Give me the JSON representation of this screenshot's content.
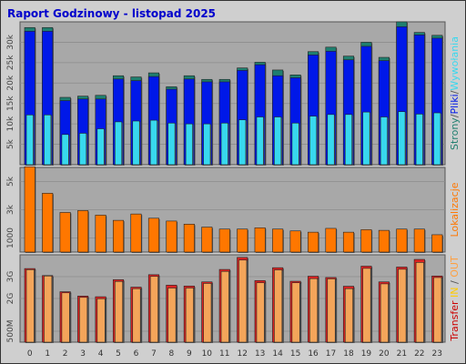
{
  "title": "Raport Godzinowy -  listopad 2025",
  "colors": {
    "background": "#cfcfcf",
    "plot_bg": "#a8a8a8",
    "title": "#0000cc",
    "strony": "#1f7f6f",
    "pliki": "#0018e8",
    "wywolania": "#38d8ee",
    "lokalizacje": "#ff7700",
    "transfer_in": "#dd2222",
    "transfer_out": "#f4a55a"
  },
  "chart_data": [
    {
      "type": "bar",
      "name": "hits",
      "categories": [
        "0",
        "1",
        "2",
        "3",
        "4",
        "5",
        "6",
        "7",
        "8",
        "9",
        "10",
        "11",
        "12",
        "13",
        "14",
        "15",
        "16",
        "17",
        "18",
        "19",
        "20",
        "21",
        "22",
        "23"
      ],
      "ylim": [
        0,
        35000
      ],
      "yticks": [
        {
          "value": 5000,
          "label": "5k"
        },
        {
          "value": 10000,
          "label": "10k"
        },
        {
          "value": 15000,
          "label": "15k"
        },
        {
          "value": 20000,
          "label": "20k"
        },
        {
          "value": 25000,
          "label": "25k"
        },
        {
          "value": 30000,
          "label": "30k"
        }
      ],
      "ylabel_parts": [
        {
          "text": "Strony",
          "color": "#1f7f6f"
        },
        {
          "text": "/",
          "color": "#555555"
        },
        {
          "text": "Pliki",
          "color": "#0018e8"
        },
        {
          "text": "/",
          "color": "#555555"
        },
        {
          "text": "Wywołania",
          "color": "#38d8ee"
        }
      ],
      "series": [
        {
          "name": "Strony",
          "color": "#1f7f6f",
          "values": [
            33600,
            33600,
            16500,
            16800,
            17000,
            21800,
            21500,
            22500,
            19100,
            21800,
            20900,
            20900,
            23700,
            25100,
            23200,
            22000,
            27700,
            28800,
            26600,
            30000,
            26300,
            35000,
            32400,
            31700
          ]
        },
        {
          "name": "Pliki",
          "color": "#0018e8",
          "values": [
            32700,
            32700,
            15700,
            16100,
            16100,
            21000,
            20600,
            21600,
            18500,
            21000,
            20300,
            20300,
            23100,
            24500,
            21800,
            21300,
            26900,
            27800,
            25700,
            29000,
            25500,
            33800,
            31800,
            31000
          ]
        },
        {
          "name": "Wywołania",
          "color": "#38d8ee",
          "values": [
            12200,
            12200,
            7400,
            7700,
            8800,
            10500,
            10700,
            10900,
            10200,
            10000,
            10000,
            10200,
            11000,
            11700,
            11700,
            10200,
            11900,
            12300,
            12300,
            12900,
            11700,
            13000,
            12400,
            12700
          ]
        }
      ]
    },
    {
      "type": "bar",
      "name": "lokalizacje",
      "categories": [
        "0",
        "1",
        "2",
        "3",
        "4",
        "5",
        "6",
        "7",
        "8",
        "9",
        "10",
        "11",
        "12",
        "13",
        "14",
        "15",
        "16",
        "17",
        "18",
        "19",
        "20",
        "21",
        "22",
        "23"
      ],
      "ylim": [
        0,
        6000
      ],
      "yticks": [
        {
          "value": 1000,
          "label": "1000"
        },
        {
          "value": 3000,
          "label": "3k"
        },
        {
          "value": 5000,
          "label": "5k"
        }
      ],
      "ylabel_parts": [
        {
          "text": "Lokalizacje",
          "color": "#ff7700"
        }
      ],
      "series": [
        {
          "name": "Lokalizacje",
          "color": "#ff7700",
          "values": [
            6050,
            4170,
            2810,
            2940,
            2620,
            2250,
            2700,
            2400,
            2200,
            1980,
            1770,
            1630,
            1630,
            1720,
            1630,
            1500,
            1410,
            1680,
            1410,
            1590,
            1540,
            1630,
            1630,
            1230
          ]
        }
      ]
    },
    {
      "type": "bar",
      "name": "transfer",
      "categories": [
        "0",
        "1",
        "2",
        "3",
        "4",
        "5",
        "6",
        "7",
        "8",
        "9",
        "10",
        "11",
        "12",
        "13",
        "14",
        "15",
        "16",
        "17",
        "18",
        "19",
        "20",
        "21",
        "22",
        "23"
      ],
      "ylim": [
        0,
        4000
      ],
      "yticks": [
        {
          "value": 500,
          "label": "500M"
        },
        {
          "value": 2000,
          "label": "2G"
        },
        {
          "value": 3000,
          "label": "3G"
        }
      ],
      "ylabel_parts": [
        {
          "text": "Transfer",
          "color": "#cc0000"
        },
        {
          "text": " ",
          "color": "#555555"
        },
        {
          "text": "IN",
          "color": "#ffcc00"
        },
        {
          "text": " / ",
          "color": "#555555"
        },
        {
          "text": "OUT",
          "color": "#ffa040"
        }
      ],
      "series": [
        {
          "name": "IN",
          "color": "#dd2222",
          "values": [
            3370,
            3050,
            2310,
            2110,
            2080,
            2860,
            2520,
            3090,
            2610,
            2570,
            2760,
            3330,
            3880,
            2820,
            3410,
            2790,
            3020,
            2960,
            2560,
            3480,
            2760,
            3440,
            3790,
            3030
          ]
        },
        {
          "name": "OUT",
          "color": "#f4a55a",
          "values": [
            3320,
            3030,
            2260,
            2050,
            1990,
            2780,
            2450,
            3010,
            2480,
            2480,
            2690,
            3240,
            3760,
            2720,
            3310,
            2720,
            2910,
            2900,
            2450,
            3380,
            2670,
            3340,
            3650,
            2960
          ]
        }
      ]
    }
  ]
}
